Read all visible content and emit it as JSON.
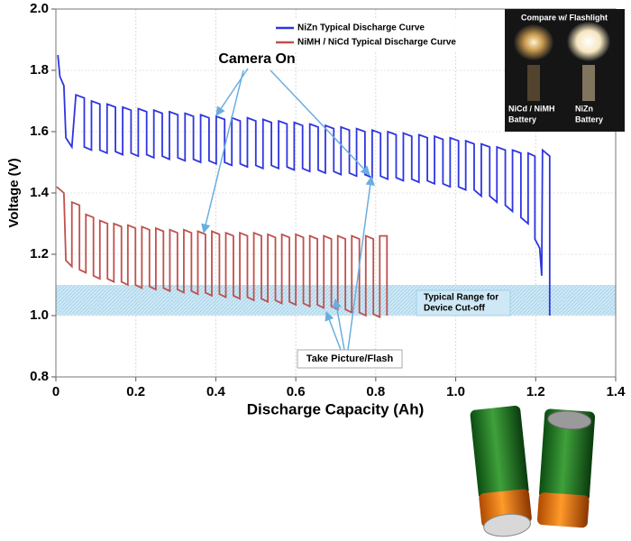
{
  "chart_data": {
    "type": "line",
    "xlabel": "Discharge Capacity (Ah)",
    "ylabel": "Voltage (V)",
    "xlim": [
      0,
      1.4
    ],
    "ylim": [
      0.8,
      2.0
    ],
    "xticks": [
      0,
      0.2,
      0.4,
      0.6,
      0.8,
      {
        "value": 1,
        "label": "1.0"
      },
      1.2,
      1.4
    ],
    "yticks": [
      0.8,
      {
        "value": 1,
        "label": "1.0"
      },
      1.2,
      1.4,
      1.6,
      1.8,
      {
        "value": 2,
        "label": "2.0"
      }
    ],
    "grid": true,
    "legend": "upper right",
    "series": [
      {
        "name": "NiZn Typical Discharge Curve",
        "color": "#2f35e0",
        "x": [
          0.005,
          0.01,
          0.02,
          0.025,
          0.04,
          0.05,
          0.071,
          0.071,
          0.089,
          0.089,
          0.11,
          0.11,
          0.128,
          0.128,
          0.149,
          0.149,
          0.167,
          0.167,
          0.188,
          0.188,
          0.206,
          0.206,
          0.227,
          0.227,
          0.245,
          0.245,
          0.266,
          0.266,
          0.284,
          0.284,
          0.305,
          0.305,
          0.323,
          0.323,
          0.344,
          0.344,
          0.362,
          0.362,
          0.383,
          0.383,
          0.401,
          0.401,
          0.422,
          0.422,
          0.44,
          0.44,
          0.461,
          0.461,
          0.479,
          0.479,
          0.5,
          0.5,
          0.518,
          0.518,
          0.539,
          0.539,
          0.557,
          0.557,
          0.578,
          0.578,
          0.596,
          0.596,
          0.617,
          0.617,
          0.635,
          0.635,
          0.656,
          0.656,
          0.674,
          0.674,
          0.695,
          0.695,
          0.713,
          0.713,
          0.734,
          0.734,
          0.752,
          0.752,
          0.773,
          0.773,
          0.791,
          0.791,
          0.812,
          0.812,
          0.83,
          0.83,
          0.851,
          0.851,
          0.869,
          0.869,
          0.89,
          0.89,
          0.908,
          0.908,
          0.929,
          0.929,
          0.947,
          0.947,
          0.968,
          0.968,
          0.986,
          0.986,
          1.007,
          1.007,
          1.025,
          1.025,
          1.046,
          1.046,
          1.064,
          1.064,
          1.085,
          1.085,
          1.103,
          1.103,
          1.124,
          1.124,
          1.142,
          1.142,
          1.163,
          1.163,
          1.181,
          1.181,
          1.198,
          1.198,
          1.21,
          1.215,
          1.217,
          1.235,
          1.235
        ],
        "values": [
          1.85,
          1.78,
          1.75,
          1.58,
          1.55,
          1.72,
          1.71,
          1.55,
          1.54,
          1.7,
          1.69,
          1.54,
          1.53,
          1.69,
          1.68,
          1.535,
          1.525,
          1.68,
          1.67,
          1.53,
          1.52,
          1.675,
          1.665,
          1.525,
          1.515,
          1.67,
          1.66,
          1.52,
          1.51,
          1.665,
          1.655,
          1.515,
          1.505,
          1.66,
          1.65,
          1.51,
          1.5,
          1.655,
          1.645,
          1.505,
          1.495,
          1.65,
          1.64,
          1.5,
          1.49,
          1.645,
          1.635,
          1.495,
          1.485,
          1.645,
          1.635,
          1.49,
          1.48,
          1.64,
          1.63,
          1.49,
          1.48,
          1.635,
          1.625,
          1.485,
          1.475,
          1.63,
          1.62,
          1.48,
          1.47,
          1.625,
          1.615,
          1.475,
          1.465,
          1.62,
          1.61,
          1.47,
          1.46,
          1.615,
          1.605,
          1.465,
          1.455,
          1.61,
          1.6,
          1.46,
          1.45,
          1.605,
          1.595,
          1.455,
          1.445,
          1.6,
          1.59,
          1.45,
          1.44,
          1.595,
          1.585,
          1.445,
          1.435,
          1.59,
          1.58,
          1.44,
          1.43,
          1.585,
          1.575,
          1.43,
          1.42,
          1.58,
          1.57,
          1.42,
          1.41,
          1.57,
          1.56,
          1.41,
          1.39,
          1.56,
          1.55,
          1.39,
          1.37,
          1.55,
          1.54,
          1.36,
          1.34,
          1.54,
          1.53,
          1.32,
          1.3,
          1.53,
          1.52,
          1.25,
          1.22,
          1.13,
          1.54,
          1.52,
          1.0
        ]
      },
      {
        "name": "NiMH / NiCd Typical Discharge Curve",
        "color": "#c0504d",
        "x": [
          0.002,
          0.02,
          0.025,
          0.04,
          0.04,
          0.059,
          0.059,
          0.075,
          0.075,
          0.094,
          0.094,
          0.11,
          0.11,
          0.129,
          0.129,
          0.145,
          0.145,
          0.164,
          0.164,
          0.18,
          0.18,
          0.199,
          0.199,
          0.215,
          0.215,
          0.234,
          0.234,
          0.25,
          0.25,
          0.269,
          0.269,
          0.285,
          0.285,
          0.304,
          0.304,
          0.32,
          0.32,
          0.339,
          0.339,
          0.355,
          0.355,
          0.374,
          0.374,
          0.39,
          0.39,
          0.409,
          0.409,
          0.425,
          0.425,
          0.444,
          0.444,
          0.46,
          0.46,
          0.479,
          0.479,
          0.495,
          0.495,
          0.514,
          0.514,
          0.53,
          0.53,
          0.549,
          0.549,
          0.565,
          0.565,
          0.584,
          0.584,
          0.6,
          0.6,
          0.619,
          0.619,
          0.635,
          0.635,
          0.654,
          0.654,
          0.67,
          0.67,
          0.689,
          0.689,
          0.705,
          0.705,
          0.724,
          0.724,
          0.74,
          0.74,
          0.759,
          0.759,
          0.775,
          0.775,
          0.794,
          0.794,
          0.81,
          0.81,
          0.828,
          0.828
        ],
        "values": [
          1.42,
          1.4,
          1.18,
          1.16,
          1.37,
          1.36,
          1.15,
          1.14,
          1.33,
          1.32,
          1.13,
          1.12,
          1.31,
          1.3,
          1.12,
          1.11,
          1.3,
          1.29,
          1.11,
          1.1,
          1.295,
          1.285,
          1.1,
          1.09,
          1.29,
          1.28,
          1.095,
          1.085,
          1.285,
          1.275,
          1.09,
          1.08,
          1.28,
          1.27,
          1.085,
          1.075,
          1.28,
          1.27,
          1.08,
          1.07,
          1.275,
          1.265,
          1.075,
          1.065,
          1.275,
          1.265,
          1.07,
          1.06,
          1.27,
          1.26,
          1.065,
          1.055,
          1.27,
          1.26,
          1.06,
          1.05,
          1.27,
          1.26,
          1.055,
          1.045,
          1.265,
          1.255,
          1.05,
          1.04,
          1.265,
          1.255,
          1.045,
          1.035,
          1.265,
          1.255,
          1.04,
          1.03,
          1.26,
          1.25,
          1.035,
          1.025,
          1.26,
          1.25,
          1.03,
          1.02,
          1.26,
          1.25,
          1.02,
          1.01,
          1.26,
          1.25,
          1.01,
          1.0,
          1.26,
          1.25,
          1.005,
          0.995,
          1.26,
          1.26,
          1.0
        ]
      }
    ],
    "band": {
      "range": [
        1.0,
        1.1
      ],
      "label": [
        "Typical Range for",
        "Device Cut-off"
      ]
    },
    "annotations": [
      "Camera On",
      "Take Picture/Flash"
    ],
    "inset": {
      "title": "Compare w/ Flashlight",
      "left": [
        "NiCd / NiMH",
        "Battery"
      ],
      "right": [
        "NiZn",
        "Battery"
      ]
    }
  }
}
